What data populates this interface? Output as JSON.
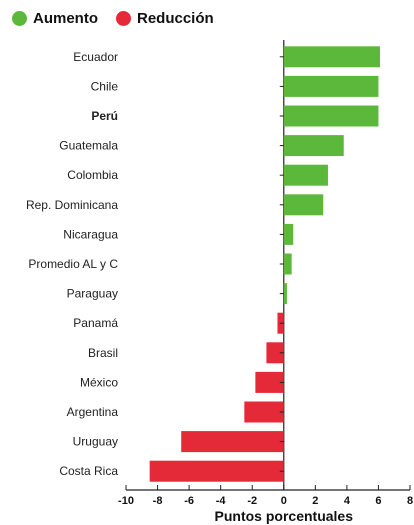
{
  "legend": [
    {
      "label": "Aumento",
      "color": "#5cb83b"
    },
    {
      "label": "Reducción",
      "color": "#e42a38"
    }
  ],
  "chart_data": {
    "type": "bar",
    "orientation": "horizontal",
    "categories": [
      "Ecuador",
      "Chile",
      "Perú",
      "Guatemala",
      "Colombia",
      "Rep. Dominicana",
      "Nicaragua",
      "Promedio AL y C",
      "Paraguay",
      "Panamá",
      "Brasil",
      "México",
      "Argentina",
      "Uruguay",
      "Costa Rica"
    ],
    "highlight_category": "Perú",
    "values": [
      6.1,
      6.0,
      6.0,
      3.8,
      2.8,
      2.5,
      0.6,
      0.5,
      0.2,
      -0.4,
      -1.1,
      -1.8,
      -2.5,
      -6.5,
      -8.5
    ],
    "xlim": [
      -10,
      8
    ],
    "xticks": [
      -10,
      -8,
      -6,
      -4,
      -2,
      0,
      2,
      4,
      6,
      8
    ],
    "xlabel": "Puntos porcentuales",
    "ylabel": "",
    "title": "",
    "grid": false,
    "legend_position": "top-left"
  }
}
